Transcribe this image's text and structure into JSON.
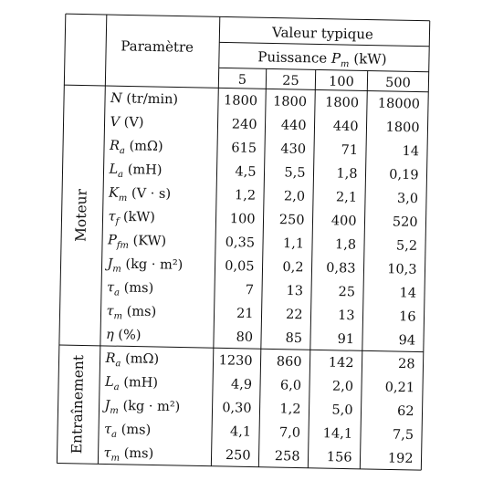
{
  "header": {
    "parametre": "Paramètre",
    "valeur_typique": "Valeur typique",
    "puissance_prefix": "Puissance ",
    "puissance_symbol": "P",
    "puissance_sub": "m",
    "puissance_unit": " (kW)",
    "powers": [
      "5",
      "25",
      "100",
      "500"
    ]
  },
  "groups": [
    {
      "label": "Moteur",
      "rows": [
        {
          "sym": "N",
          "sub": "",
          "unit": " (tr/min)",
          "values": [
            "1800",
            "1800",
            "1800",
            "18000"
          ]
        },
        {
          "sym": "V",
          "sub": "",
          "unit": " (V)",
          "values": [
            "240",
            "440",
            "440",
            "1800"
          ]
        },
        {
          "sym": "R",
          "sub": "a",
          "unit": " (mΩ)",
          "values": [
            "615",
            "430",
            "71",
            "14"
          ]
        },
        {
          "sym": "L",
          "sub": "a",
          "unit": " (mH)",
          "values": [
            "4,5",
            "5,5",
            "1,8",
            "0,19"
          ]
        },
        {
          "sym": "K",
          "sub": "m",
          "unit": " (V · s)",
          "values": [
            "1,2",
            "2,0",
            "2,1",
            "3,0"
          ]
        },
        {
          "sym": "τ",
          "sub": "f",
          "unit": " (kW)",
          "values": [
            "100",
            "250",
            "400",
            "520"
          ]
        },
        {
          "sym": "P",
          "sub": "fm",
          "unit": " (KW)",
          "values": [
            "0,35",
            "1,1",
            "1,8",
            "5,2"
          ]
        },
        {
          "sym": "J",
          "sub": "m",
          "unit": " (kg · m²)",
          "values": [
            "0,05",
            "0,2",
            "0,83",
            "10,3"
          ]
        },
        {
          "sym": "τ",
          "sub": "a",
          "unit": " (ms)",
          "values": [
            "7",
            "13",
            "25",
            "14"
          ]
        },
        {
          "sym": "τ",
          "sub": "m",
          "unit": " (ms)",
          "values": [
            "21",
            "22",
            "13",
            "16"
          ]
        },
        {
          "sym": "η",
          "sub": "",
          "unit": " (%)",
          "values": [
            "80",
            "85",
            "91",
            "94"
          ]
        }
      ]
    },
    {
      "label": "Entraînement",
      "rows": [
        {
          "sym": "R",
          "sub": "a",
          "unit": " (mΩ)",
          "values": [
            "1230",
            "860",
            "142",
            "28"
          ]
        },
        {
          "sym": "L",
          "sub": "a",
          "unit": " (mH)",
          "values": [
            "4,9",
            "6,0",
            "2,0",
            "0,21"
          ]
        },
        {
          "sym": "J",
          "sub": "m",
          "unit": " (kg · m²)",
          "values": [
            "0,30",
            "1,2",
            "5,0",
            "62"
          ]
        },
        {
          "sym": "τ",
          "sub": "a",
          "unit": " (ms)",
          "values": [
            "4,1",
            "7,0",
            "14,1",
            "7,5"
          ]
        },
        {
          "sym": "τ",
          "sub": "m",
          "unit": " (ms)",
          "values": [
            "250",
            "258",
            "156",
            "192"
          ]
        }
      ]
    }
  ]
}
